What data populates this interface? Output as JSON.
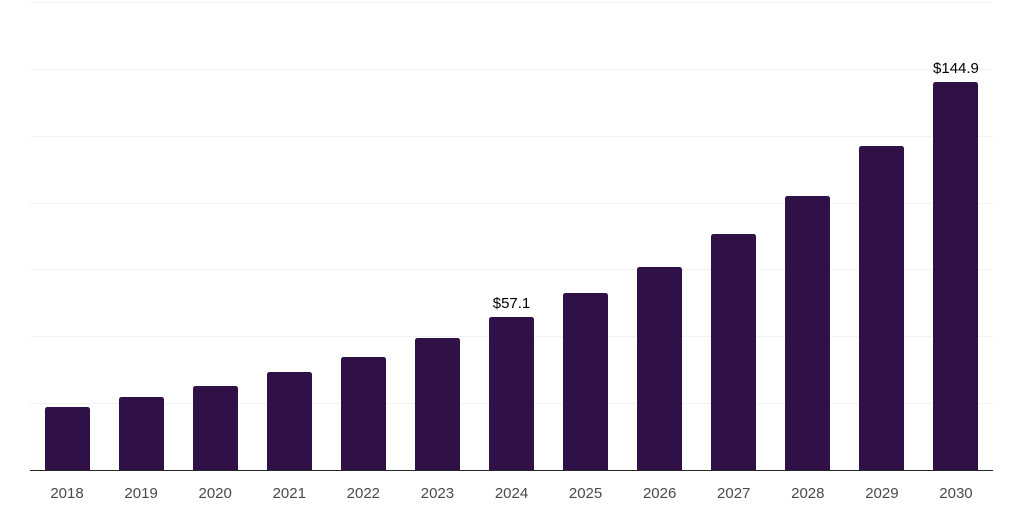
{
  "chart_data": {
    "type": "bar",
    "title": "",
    "xlabel": "",
    "ylabel": "",
    "categories": [
      "2018",
      "2019",
      "2020",
      "2021",
      "2022",
      "2023",
      "2024",
      "2025",
      "2026",
      "2027",
      "2028",
      "2029",
      "2030"
    ],
    "values": [
      23.4,
      27.3,
      31.5,
      36.7,
      42.2,
      49.4,
      57.1,
      66.2,
      76.0,
      88.2,
      102.4,
      121.2,
      144.9
    ],
    "data_labels": [
      "",
      "",
      "",
      "",
      "",
      "",
      "$57.1",
      "",
      "",
      "",
      "",
      "",
      "$144.9"
    ],
    "ylim": [
      0,
      175
    ],
    "y_gridline_step": 25,
    "grid": true,
    "legend": false,
    "y_axis_tick_labels_visible": false,
    "colors": {
      "bar": "#2F1147",
      "gridline": "#F2F2F2",
      "axis_line": "#262626",
      "tick_label": "#4A4A4A",
      "data_label": "#000000",
      "background": "#FFFFFF"
    }
  }
}
